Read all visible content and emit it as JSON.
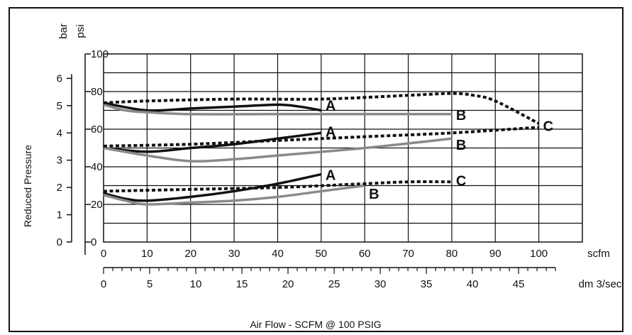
{
  "chart_data": {
    "type": "line",
    "title": "",
    "xlabel": "Air Flow - SCFM @ 100 PSIG",
    "ylabel": "Reduced Pressure",
    "x_units": {
      "primary": "scfm",
      "secondary": "dm 3/sec"
    },
    "y_units": {
      "primary": "psi",
      "secondary": "bar"
    },
    "xlim": [
      0,
      110
    ],
    "ylim": [
      0,
      100
    ],
    "x_ticks_scfm": [
      "0",
      "10",
      "20",
      "30",
      "40",
      "50",
      "60",
      "70",
      "80",
      "90",
      "100"
    ],
    "x_ticks_dm3sec": [
      "0",
      "5",
      "10",
      "15",
      "20",
      "25",
      "30",
      "35",
      "40",
      "45"
    ],
    "y_ticks_psi": [
      "0",
      "20",
      "40",
      "60",
      "80",
      "100"
    ],
    "y_ticks_bar": [
      "0",
      "1",
      "2",
      "3",
      "4",
      "5",
      "6"
    ],
    "grid": true,
    "colors": {
      "A": "#111111",
      "B": "#8a8a8a",
      "C": "#111111"
    },
    "series": [
      {
        "name": "A",
        "style": "solid",
        "label_at": [
          50,
          73
        ],
        "x": [
          0,
          10,
          20,
          30,
          40,
          45,
          50
        ],
        "y": [
          74,
          70,
          71,
          72,
          73,
          72,
          70
        ]
      },
      {
        "name": "B",
        "style": "solid",
        "label_at": [
          80,
          68
        ],
        "x": [
          0,
          5,
          10,
          20,
          40,
          60,
          80
        ],
        "y": [
          73,
          70,
          69,
          68,
          68,
          68,
          68
        ]
      },
      {
        "name": "C",
        "style": "dotted",
        "label_at": [
          100,
          62
        ],
        "x": [
          0,
          10,
          30,
          50,
          70,
          80,
          85,
          90,
          100
        ],
        "y": [
          74,
          75,
          76,
          76,
          78,
          79,
          78,
          75,
          63
        ]
      },
      {
        "name": "A",
        "style": "solid",
        "label_at": [
          50,
          59
        ],
        "x": [
          0,
          10,
          20,
          30,
          40,
          50
        ],
        "y": [
          50,
          48,
          50,
          52,
          55,
          58
        ]
      },
      {
        "name": "B",
        "style": "solid",
        "label_at": [
          80,
          52
        ],
        "x": [
          0,
          10,
          20,
          30,
          40,
          60,
          80
        ],
        "y": [
          50,
          46,
          43,
          44,
          46,
          50,
          55
        ]
      },
      {
        "name": "",
        "style": "dotted",
        "label_at": null,
        "x": [
          0,
          20,
          40,
          60,
          80,
          100
        ],
        "y": [
          51,
          52,
          54,
          56,
          58,
          61
        ]
      },
      {
        "name": "A",
        "style": "solid",
        "label_at": [
          50,
          36
        ],
        "x": [
          0,
          5,
          10,
          20,
          30,
          40,
          50
        ],
        "y": [
          26,
          23,
          22,
          24,
          27,
          31,
          36
        ]
      },
      {
        "name": "B",
        "style": "solid",
        "label_at": [
          60,
          26
        ],
        "x": [
          0,
          5,
          10,
          20,
          30,
          40,
          50,
          60
        ],
        "y": [
          25,
          22,
          20,
          21,
          22,
          24,
          27,
          30
        ]
      },
      {
        "name": "C",
        "style": "dotted",
        "label_at": [
          80,
          33
        ],
        "x": [
          0,
          20,
          40,
          60,
          70,
          80
        ],
        "y": [
          27,
          28,
          29,
          31,
          32,
          32
        ]
      }
    ]
  }
}
